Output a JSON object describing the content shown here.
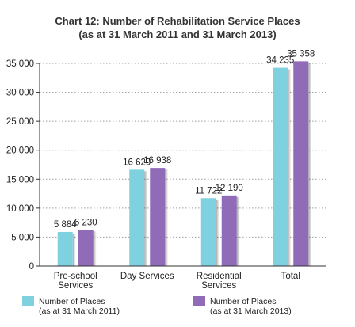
{
  "chart_data": {
    "type": "bar",
    "title": [
      "Chart 12: Number of Rehabilitation Service Places",
      "(as at 31 March 2011 and 31 March 2013)"
    ],
    "categories": [
      [
        "Pre-school",
        "Services"
      ],
      [
        "Day Services"
      ],
      [
        "Residential",
        "Services"
      ],
      [
        "Total"
      ]
    ],
    "series": [
      {
        "name": [
          "Number of Places",
          "(as at 31 March 2011)"
        ],
        "color": "#7fd1e0",
        "values": [
          5884,
          16629,
          11722,
          34235
        ],
        "labels": [
          "5 884",
          "16 629",
          "11 722",
          "34 235"
        ]
      },
      {
        "name": [
          "Number of Places",
          "(as at 31 March 2013)"
        ],
        "color": "#8f6bb8",
        "values": [
          6230,
          16938,
          12190,
          35358
        ],
        "labels": [
          "6 230",
          "16 938",
          "12 190",
          "35 358"
        ]
      }
    ],
    "ylim": [
      0,
      35000
    ],
    "yticks": [
      0,
      5000,
      10000,
      15000,
      20000,
      25000,
      30000,
      35000
    ],
    "ytick_labels": [
      "0",
      "5 000",
      "10 000",
      "15 000",
      "20 000",
      "25 000",
      "30 000",
      "35 000"
    ],
    "grid": "dotted horizontal",
    "legend_position": "bottom"
  }
}
